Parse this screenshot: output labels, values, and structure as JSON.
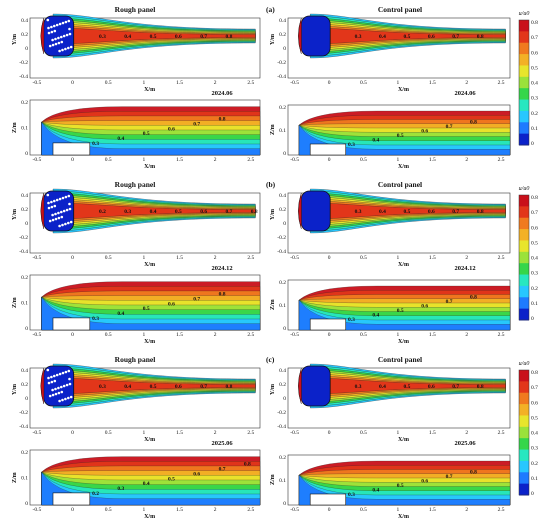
{
  "colorbar": {
    "title": "u/u0",
    "ticks": [
      "0.8",
      "0.7",
      "0.6",
      "0.5",
      "0.4",
      "0.3",
      "0.2",
      "0.1",
      "0"
    ],
    "colors": [
      "#0b22c9",
      "#1e7bff",
      "#27c7ff",
      "#27e7c0",
      "#35d64a",
      "#9be23a",
      "#e8e52c",
      "#f3b126",
      "#f07a1f",
      "#e2361a",
      "#c9101a"
    ]
  },
  "rows": [
    {
      "tag": "(a)",
      "rough_title": "Rough panel",
      "control_title": "Control panel",
      "date": "2024.06",
      "top_ylabel": "Y/m",
      "top_xlabel": "X/m",
      "side_ylabel": "Z/m",
      "top_xticks": [
        "-0.5",
        "0",
        "0.5",
        "1",
        "1.5",
        "2",
        "2.5"
      ],
      "top_yticks": [
        "0.4",
        "0.2",
        "0",
        "-0.2",
        "-0.4"
      ],
      "side_xticks": [
        "-0.5",
        "0",
        "0.5",
        "1",
        "1.5",
        "2",
        "2.5"
      ],
      "side_yticks": [
        "0.2",
        "0.1",
        "0"
      ],
      "rough_top_contours": [
        "0.3",
        "0.4",
        "0.5",
        "0.6",
        "0.7",
        "0.8"
      ],
      "rough_side_contours": [
        "0.3",
        "0.4",
        "0.5",
        "0.6",
        "0.7",
        "0.8"
      ],
      "control_top_contours": [
        "0.3",
        "0.4",
        "0.5",
        "0.6",
        "0.7",
        "0.8"
      ],
      "control_side_contours": [
        "0.3",
        "0.4",
        "0.5",
        "0.6",
        "0.7",
        "0.8"
      ]
    },
    {
      "tag": "(b)",
      "rough_title": "Rough panel",
      "control_title": "Control panel",
      "date": "2024.12",
      "top_ylabel": "Y/m",
      "top_xlabel": "X/m",
      "side_ylabel": "Z/m",
      "top_xticks": [
        "-0.5",
        "0",
        "0.5",
        "1",
        "1.5",
        "2",
        "2.5"
      ],
      "top_yticks": [
        "0.4",
        "0.2",
        "0",
        "-0.2",
        "-0.4"
      ],
      "side_xticks": [
        "-0.5",
        "0",
        "0.5",
        "1",
        "1.5",
        "2",
        "2.5"
      ],
      "side_yticks": [
        "0.2",
        "0.1",
        "0"
      ],
      "rough_top_contours": [
        "0.2",
        "0.3",
        "0.4",
        "0.5",
        "0.6",
        "0.7",
        "0.8"
      ],
      "rough_side_contours": [
        "0.3",
        "0.4",
        "0.5",
        "0.6",
        "0.7",
        "0.8"
      ],
      "control_top_contours": [
        "0.3",
        "0.4",
        "0.5",
        "0.6",
        "0.7",
        "0.8"
      ],
      "control_side_contours": [
        "0.3",
        "0.4",
        "0.5",
        "0.6",
        "0.7",
        "0.8"
      ]
    },
    {
      "tag": "(c)",
      "rough_title": "Rough panel",
      "control_title": "Control panel",
      "date": "2025.06",
      "top_ylabel": "Y/m",
      "top_xlabel": "X/m",
      "side_ylabel": "Z/m",
      "top_xticks": [
        "-0.5",
        "0",
        "0.5",
        "1",
        "1.5",
        "2",
        "2.5"
      ],
      "top_yticks": [
        "0.4",
        "0.2",
        "0",
        "-0.2",
        "-0.4"
      ],
      "side_xticks": [
        "-0.5",
        "0",
        "0.5",
        "1",
        "1.5",
        "2",
        "2.5"
      ],
      "side_yticks": [
        "0.2",
        "0.1",
        "0"
      ],
      "rough_top_contours": [
        "0.3",
        "0.4",
        "0.5",
        "0.6",
        "0.7",
        "0.8"
      ],
      "rough_side_contours": [
        "0.2",
        "0.3",
        "0.4",
        "0.5",
        "0.6",
        "0.7",
        "0.8"
      ],
      "control_top_contours": [
        "0.3",
        "0.4",
        "0.5",
        "0.6",
        "0.7",
        "0.8"
      ],
      "control_side_contours": [
        "0.3",
        "0.4",
        "0.5",
        "0.6",
        "0.7",
        "0.8"
      ]
    }
  ]
}
